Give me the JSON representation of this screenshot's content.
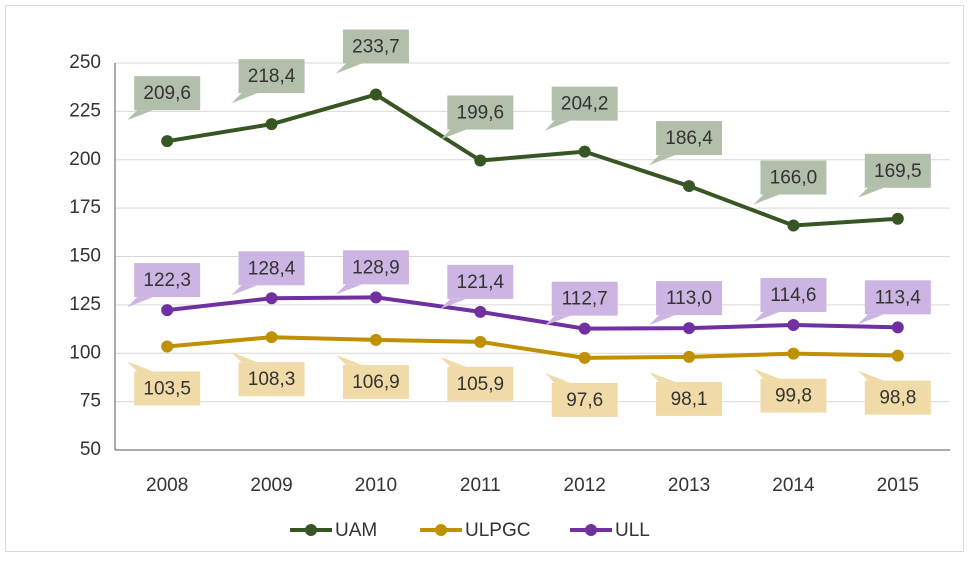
{
  "chart_data": {
    "type": "line",
    "categories": [
      "2008",
      "2009",
      "2010",
      "2011",
      "2012",
      "2013",
      "2014",
      "2015"
    ],
    "series": [
      {
        "name": "UAM",
        "color": "#375623",
        "values": [
          209.6,
          218.4,
          233.7,
          199.6,
          204.2,
          186.4,
          166.0,
          169.5
        ],
        "value_labels": [
          "209,6",
          "218,4",
          "233,7",
          "199,6",
          "204,2",
          "186,4",
          "166,0",
          "169,5"
        ]
      },
      {
        "name": "ULPGC",
        "color": "#bf9000",
        "values": [
          103.5,
          108.3,
          106.9,
          105.9,
          97.6,
          98.1,
          99.8,
          98.8
        ],
        "value_labels": [
          "103,5",
          "108,3",
          "106,9",
          "105,9",
          "97,6",
          "98,1",
          "99,8",
          "98,8"
        ]
      },
      {
        "name": "ULL",
        "color": "#7030a0",
        "values": [
          122.3,
          128.4,
          128.9,
          121.4,
          112.7,
          113.0,
          114.6,
          113.4
        ],
        "value_labels": [
          "122,3",
          "128,4",
          "128,9",
          "121,4",
          "112,7",
          "113,0",
          "114,6",
          "113,4"
        ]
      }
    ],
    "ylim": [
      50,
      250
    ],
    "yticks": [
      50,
      75,
      100,
      125,
      150,
      175,
      200,
      225,
      250
    ],
    "grid": true,
    "legend": "bottom"
  }
}
